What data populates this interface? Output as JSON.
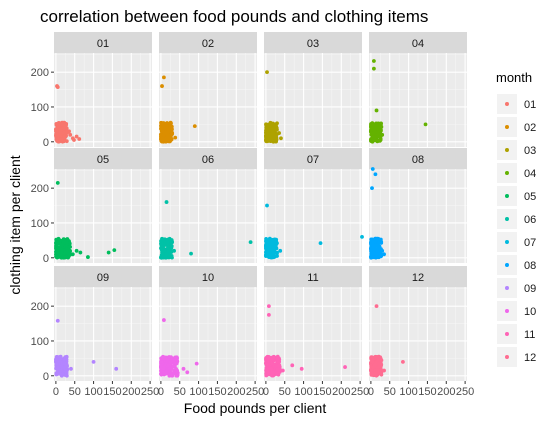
{
  "chart_data": {
    "type": "scatter",
    "title": "correlation between food pounds and clothing items",
    "xlabel": "Food pounds per client",
    "ylabel": "clothing item per client",
    "xlim": [
      -5,
      255
    ],
    "ylim": [
      -15,
      255
    ],
    "x_ticks": [
      0,
      50,
      100,
      150,
      200,
      250
    ],
    "x_tick_labels": [
      "0",
      "50",
      "100",
      "150",
      "200",
      "250"
    ],
    "y_ticks": [
      0,
      100,
      200
    ],
    "y_tick_labels": [
      "0",
      "100",
      "200"
    ],
    "facet_by": "month",
    "grid": true,
    "legend": {
      "title": "month",
      "position": "right"
    },
    "series": [
      {
        "name": "01",
        "color": "#F8766D",
        "clusters": [
          {
            "x": [
              0,
              30
            ],
            "y": [
              0,
              55
            ],
            "n": 140
          }
        ],
        "points": [
          [
            3,
            160
          ],
          [
            5,
            157
          ],
          [
            38,
            20
          ],
          [
            45,
            10
          ],
          [
            48,
            5
          ],
          [
            55,
            15
          ],
          [
            62,
            8
          ],
          [
            35,
            30
          ]
        ]
      },
      {
        "name": "02",
        "color": "#DB8E00",
        "clusters": [
          {
            "x": [
              0,
              30
            ],
            "y": [
              0,
              55
            ],
            "n": 140
          }
        ],
        "points": [
          [
            8,
            185
          ],
          [
            3,
            160
          ],
          [
            90,
            45
          ],
          [
            30,
            25
          ],
          [
            38,
            12
          ]
        ]
      },
      {
        "name": "03",
        "color": "#AEA200",
        "clusters": [
          {
            "x": [
              0,
              30
            ],
            "y": [
              0,
              55
            ],
            "n": 140
          }
        ],
        "points": [
          [
            3,
            200
          ],
          [
            35,
            25
          ],
          [
            40,
            10
          ]
        ]
      },
      {
        "name": "04",
        "color": "#64B200",
        "clusters": [
          {
            "x": [
              0,
              28
            ],
            "y": [
              0,
              55
            ],
            "n": 140
          }
        ],
        "points": [
          [
            8,
            232
          ],
          [
            8,
            210
          ],
          [
            15,
            90
          ],
          [
            145,
            50
          ],
          [
            30,
            20
          ]
        ]
      },
      {
        "name": "05",
        "color": "#00BD5C",
        "clusters": [
          {
            "x": [
              0,
              38
            ],
            "y": [
              0,
              55
            ],
            "n": 160
          }
        ],
        "points": [
          [
            5,
            215
          ],
          [
            55,
            20
          ],
          [
            65,
            15
          ],
          [
            85,
            2
          ],
          [
            140,
            15
          ],
          [
            155,
            22
          ],
          [
            45,
            10
          ]
        ]
      },
      {
        "name": "06",
        "color": "#00C1A7",
        "clusters": [
          {
            "x": [
              0,
              30
            ],
            "y": [
              0,
              55
            ],
            "n": 140
          }
        ],
        "points": [
          [
            15,
            160
          ],
          [
            80,
            12
          ],
          [
            238,
            45
          ],
          [
            35,
            20
          ]
        ]
      },
      {
        "name": "07",
        "color": "#00BADE",
        "clusters": [
          {
            "x": [
              0,
              30
            ],
            "y": [
              0,
              55
            ],
            "n": 140
          }
        ],
        "points": [
          [
            3,
            150
          ],
          [
            145,
            42
          ],
          [
            255,
            60
          ],
          [
            38,
            20
          ]
        ]
      },
      {
        "name": "08",
        "color": "#00A6FF",
        "clusters": [
          {
            "x": [
              0,
              28
            ],
            "y": [
              0,
              55
            ],
            "n": 140
          }
        ],
        "points": [
          [
            5,
            255
          ],
          [
            12,
            240
          ],
          [
            3,
            200
          ],
          [
            30,
            20
          ],
          [
            35,
            10
          ]
        ]
      },
      {
        "name": "09",
        "color": "#B385FF",
        "clusters": [
          {
            "x": [
              0,
              30
            ],
            "y": [
              0,
              55
            ],
            "n": 140
          }
        ],
        "points": [
          [
            5,
            158
          ],
          [
            100,
            40
          ],
          [
            160,
            20
          ],
          [
            40,
            20
          ]
        ]
      },
      {
        "name": "10",
        "color": "#EF67EB",
        "clusters": [
          {
            "x": [
              0,
              45
            ],
            "y": [
              0,
              55
            ],
            "n": 160
          }
        ],
        "points": [
          [
            8,
            160
          ],
          [
            60,
            20
          ],
          [
            95,
            35
          ],
          [
            70,
            10
          ]
        ]
      },
      {
        "name": "11",
        "color": "#FF63B6",
        "clusters": [
          {
            "x": [
              0,
              38
            ],
            "y": [
              0,
              55
            ],
            "n": 150
          }
        ],
        "points": [
          [
            8,
            200
          ],
          [
            8,
            175
          ],
          [
            70,
            30
          ],
          [
            95,
            20
          ],
          [
            210,
            25
          ],
          [
            45,
            15
          ]
        ]
      },
      {
        "name": "12",
        "color": "#FF6C91",
        "clusters": [
          {
            "x": [
              0,
              28
            ],
            "y": [
              0,
              55
            ],
            "n": 140
          }
        ],
        "points": [
          [
            15,
            200
          ],
          [
            85,
            40
          ],
          [
            35,
            15
          ]
        ]
      }
    ]
  }
}
